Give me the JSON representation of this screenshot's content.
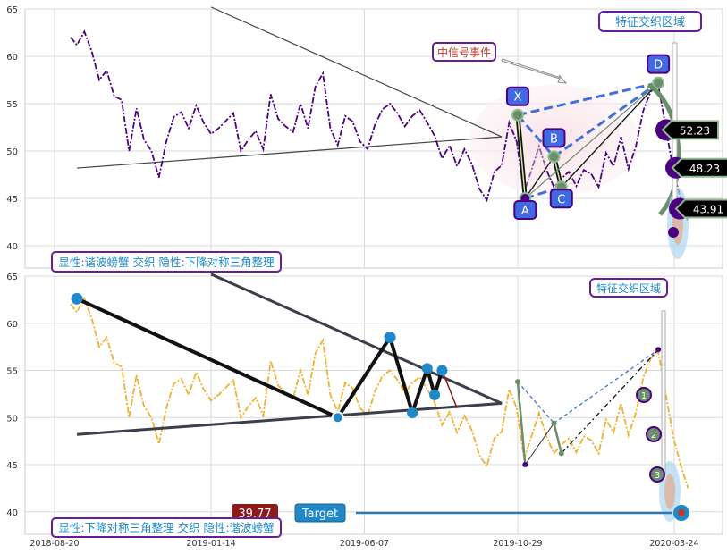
{
  "chart_data": [
    {
      "type": "line",
      "panel": "top",
      "ylim": [
        38,
        65
      ],
      "yticks": [
        40,
        45,
        50,
        55,
        60,
        65
      ],
      "grid": true,
      "series_color": "#4b0082",
      "series": [
        {
          "name": "",
          "x": [
            "2018-09-04",
            "2018-09-10",
            "2018-09-17",
            "2018-09-24",
            "2018-10-01",
            "2018-10-08",
            "2018-10-15",
            "2018-10-22",
            "2018-10-29",
            "2018-11-05",
            "2018-11-12",
            "2018-11-19",
            "2018-11-26",
            "2018-12-03",
            "2018-12-10",
            "2018-12-17",
            "2018-12-24",
            "2018-12-31",
            "2019-01-07",
            "2019-01-14",
            "2019-01-21",
            "2019-01-28",
            "2019-02-04",
            "2019-02-11",
            "2019-02-18",
            "2019-02-25",
            "2019-03-04",
            "2019-03-11",
            "2019-03-18",
            "2019-03-25",
            "2019-04-01",
            "2019-04-08",
            "2019-04-15",
            "2019-04-22",
            "2019-04-29",
            "2019-05-06",
            "2019-05-13",
            "2019-05-20",
            "2019-05-27",
            "2019-06-03",
            "2019-06-10",
            "2019-06-17",
            "2019-06-24",
            "2019-07-01",
            "2019-07-08",
            "2019-07-15",
            "2019-07-22",
            "2019-07-29",
            "2019-08-05",
            "2019-08-12",
            "2019-08-19",
            "2019-08-26",
            "2019-09-02",
            "2019-09-09",
            "2019-09-16",
            "2019-09-23",
            "2019-09-30",
            "2019-10-07",
            "2019-10-14",
            "2019-10-21",
            "2019-10-28",
            "2019-11-04",
            "2019-11-11",
            "2019-11-18",
            "2019-11-25",
            "2019-12-02",
            "2019-12-09",
            "2019-12-16",
            "2019-12-23",
            "2019-12-30",
            "2020-01-06",
            "2020-01-13",
            "2020-01-20",
            "2020-01-27",
            "2020-02-03",
            "2020-02-10",
            "2020-02-17",
            "2020-02-24",
            "2020-03-02",
            "2020-03-09",
            "2020-03-16",
            "2020-03-23",
            "2020-03-30",
            "2020-04-06"
          ],
          "y": [
            62.0,
            61.2,
            62.6,
            60.5,
            57.5,
            58.5,
            55.8,
            55.4,
            50.0,
            54.5,
            51.2,
            50.0,
            47.2,
            51.0,
            53.6,
            54.1,
            52.4,
            54.8,
            53.0,
            51.8,
            52.4,
            53.2,
            54.0,
            50.0,
            51.2,
            52.1,
            50.2,
            56.0,
            53.4,
            52.6,
            52.0,
            55.0,
            52.4,
            56.8,
            58.2,
            52.4,
            50.6,
            53.7,
            53.1,
            51.0,
            50.2,
            52.8,
            54.4,
            55.0,
            54.0,
            52.6,
            53.7,
            54.3,
            53.0,
            51.6,
            49.2,
            50.6,
            48.4,
            50.2,
            48.6,
            46.0,
            44.8,
            47.8,
            48.5,
            53.0,
            51.0,
            45.6,
            48.0,
            50.5,
            48.0,
            46.2,
            47.1,
            47.8,
            46.3,
            48.0,
            47.6,
            46.2,
            49.8,
            48.4,
            51.5,
            48.1,
            50.5,
            54.3,
            56.3,
            57.0,
            52.5,
            48.0,
            45.0,
            42.5
          ]
        }
      ],
      "trendlines": [
        {
          "x": [
            "2018-09-10",
            "2019-10-14"
          ],
          "y": [
            48.2,
            51.5
          ]
        },
        {
          "x": [
            "2019-01-14",
            "2019-10-14"
          ],
          "y": [
            65.2,
            51.5
          ]
        }
      ],
      "pattern_points": [
        {
          "label": "X",
          "x": "2019-10-29",
          "y": 53.8
        },
        {
          "label": "A",
          "x": "2019-11-05",
          "y": 45.0
        },
        {
          "label": "B",
          "x": "2019-12-02",
          "y": 49.4
        },
        {
          "label": "C",
          "x": "2019-12-09",
          "y": 46.2
        },
        {
          "label": "D",
          "x": "2020-03-09",
          "y": 57.2
        }
      ],
      "targets": [
        {
          "label": "52.23",
          "value": 52.23
        },
        {
          "label": "48.23",
          "value": 48.23
        },
        {
          "label": "43.91",
          "value": 43.91
        }
      ],
      "annotations": {
        "feature_zone": "特征交织区域",
        "signal_event": "中信号事件",
        "description": "显性:谐波螃蟹 交织 隐性:下降对称三角整理"
      }
    },
    {
      "type": "line",
      "panel": "bottom",
      "ylim": [
        38,
        65
      ],
      "yticks": [
        40,
        45,
        50,
        55,
        60,
        65
      ],
      "grid": true,
      "series_color": "#f0b030",
      "xticks": [
        "2018-08-20",
        "2019-01-14",
        "2019-06-07",
        "2019-10-29",
        "2020-03-24"
      ],
      "triangle_points": [
        {
          "x": "2018-09-10",
          "y": 62.6
        },
        {
          "x": "2019-05-13",
          "y": 50.0
        },
        {
          "x": "2019-07-01",
          "y": 58.5
        },
        {
          "x": "2019-07-22",
          "y": 50.5
        },
        {
          "x": "2019-08-05",
          "y": 55.2
        },
        {
          "x": "2019-08-12",
          "y": 52.4
        },
        {
          "x": "2019-08-19",
          "y": 55.0
        }
      ],
      "target": {
        "label": "Target",
        "value": 39.77,
        "value_label": "39.77"
      },
      "bubbles": [
        "1",
        "2",
        "3"
      ],
      "annotations": {
        "feature_zone": "特征交织区域",
        "description": "显性:下降对称三角整理 交织 隐性:谐波螃蟹"
      }
    }
  ]
}
